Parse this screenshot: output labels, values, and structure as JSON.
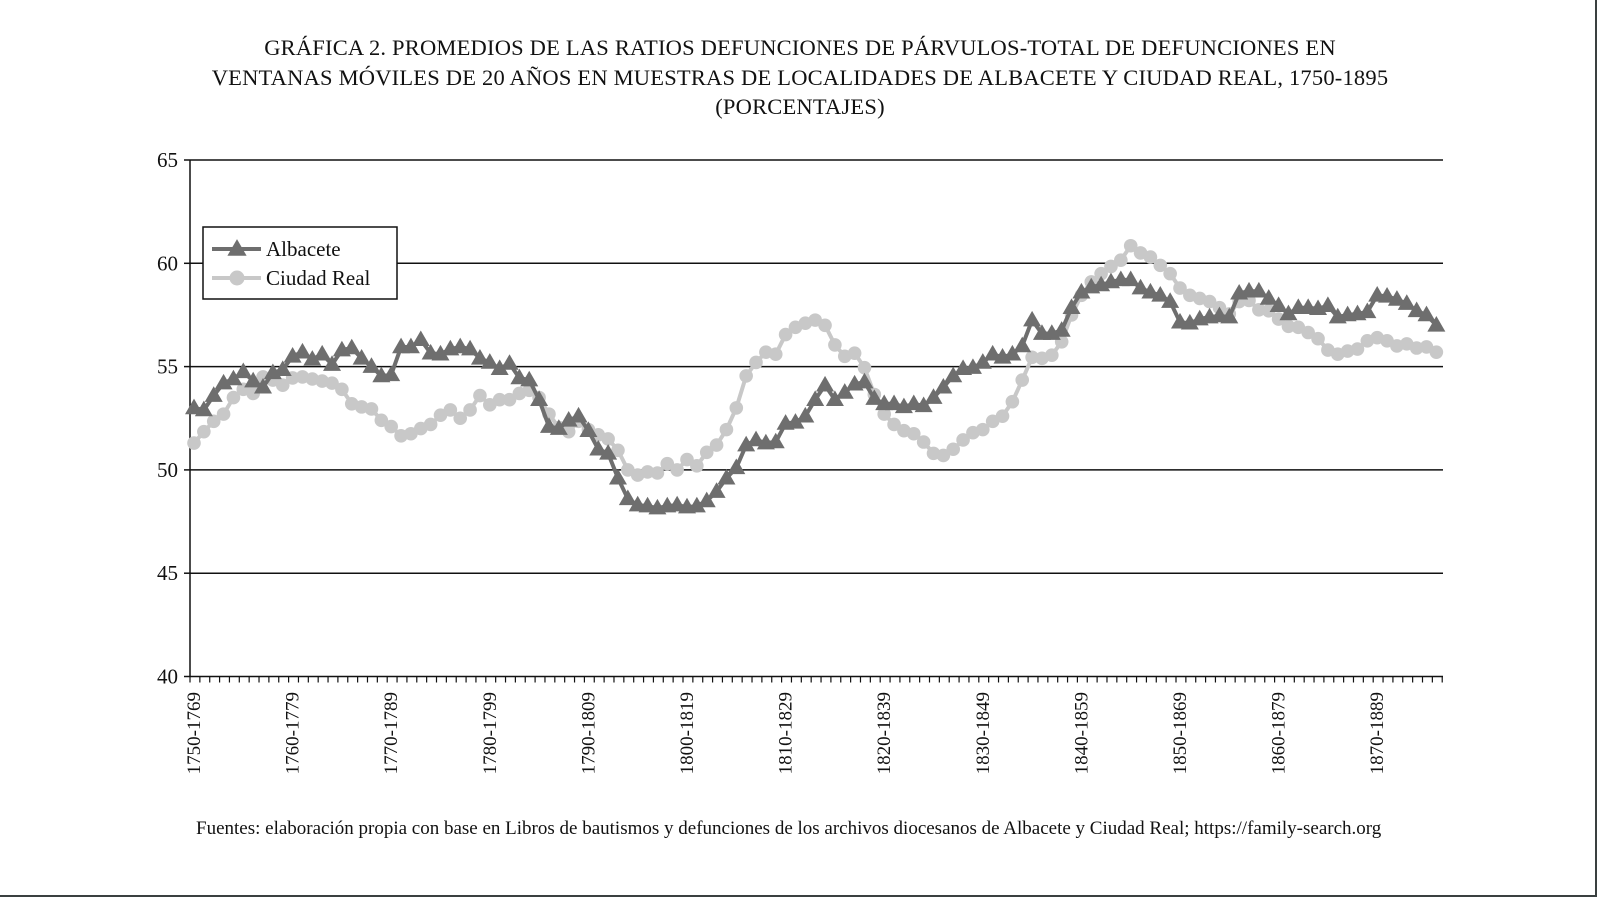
{
  "title": {
    "lines": [
      "GRÁFICA 2. PROMEDIOS DE LAS RATIOS DEFUNCIONES DE PÁRVULOS-TOTAL DE DEFUNCIONES EN",
      "VENTANAS MÓVILES DE 20 AÑOS EN MUESTRAS DE LOCALIDADES DE ALBACETE Y CIUDAD REAL, 1750-1895",
      "(PORCENTAJES)"
    ]
  },
  "footer": "Fuentes: elaboración propia con base en Libros de bautismos y defunciones de los archivos diocesanos de Albacete y Ciudad Real; https://family-search.org",
  "chart_data": {
    "type": "line",
    "ylim": [
      40,
      65
    ],
    "yticks": [
      "40",
      "45",
      "50",
      "55",
      "60",
      "65"
    ],
    "grid": "horizontal",
    "legend_placement": "top-left",
    "x_tick_labels": [
      "1750-1769",
      "1760-1779",
      "1770-1789",
      "1780-1799",
      "1790-1809",
      "1800-1819",
      "1810-1829",
      "1820-1839",
      "1830-1849",
      "1840-1859",
      "1850-1869",
      "1860-1879",
      "1870-1889"
    ],
    "x_tick_label_every": 10,
    "series": [
      {
        "name": "Albacete",
        "color": "#6e6e6e",
        "marker": "triangle",
        "values": [
          53.0,
          52.9,
          53.6,
          54.2,
          54.4,
          54.75,
          54.3,
          54.0,
          54.7,
          54.85,
          55.5,
          55.7,
          55.35,
          55.6,
          55.1,
          55.8,
          55.9,
          55.4,
          55.0,
          54.55,
          54.6,
          55.95,
          55.95,
          56.3,
          55.65,
          55.6,
          55.85,
          55.95,
          55.85,
          55.4,
          55.2,
          54.9,
          55.15,
          54.45,
          54.35,
          53.4,
          52.1,
          52.0,
          52.4,
          52.6,
          51.9,
          51.0,
          50.8,
          49.6,
          48.6,
          48.3,
          48.25,
          48.15,
          48.25,
          48.3,
          48.2,
          48.25,
          48.5,
          48.95,
          49.6,
          50.1,
          51.2,
          51.45,
          51.3,
          51.35,
          52.25,
          52.3,
          52.6,
          53.4,
          54.1,
          53.4,
          53.75,
          54.15,
          54.25,
          53.45,
          53.2,
          53.2,
          53.05,
          53.2,
          53.1,
          53.5,
          54.0,
          54.55,
          54.9,
          54.95,
          55.2,
          55.6,
          55.45,
          55.6,
          56.0,
          57.25,
          56.6,
          56.6,
          56.75,
          57.85,
          58.6,
          58.85,
          58.95,
          59.1,
          59.2,
          59.2,
          58.8,
          58.6,
          58.45,
          58.15,
          57.15,
          57.1,
          57.3,
          57.4,
          57.45,
          57.4,
          58.55,
          58.65,
          58.65,
          58.3,
          57.95,
          57.55,
          57.85,
          57.85,
          57.8,
          57.95,
          57.4,
          57.5,
          57.55,
          57.65,
          58.45,
          58.4,
          58.25,
          58.05,
          57.7,
          57.5,
          57.0
        ]
      },
      {
        "name": "Ciudad Real",
        "color": "#c8c8c8",
        "marker": "circle",
        "values": [
          51.3,
          51.85,
          52.35,
          52.7,
          53.5,
          53.9,
          53.7,
          54.5,
          54.35,
          54.1,
          54.45,
          54.5,
          54.4,
          54.3,
          54.2,
          53.9,
          53.2,
          53.05,
          52.95,
          52.4,
          52.1,
          51.65,
          51.75,
          52.0,
          52.2,
          52.65,
          52.9,
          52.5,
          52.9,
          53.6,
          53.15,
          53.4,
          53.4,
          53.7,
          53.85,
          53.5,
          52.7,
          52.05,
          51.85,
          52.35,
          51.95,
          51.7,
          51.5,
          50.95,
          50.0,
          49.75,
          49.9,
          49.85,
          50.3,
          50.0,
          50.5,
          50.2,
          50.85,
          51.2,
          51.95,
          53.0,
          54.55,
          55.2,
          55.7,
          55.6,
          56.55,
          56.9,
          57.1,
          57.25,
          57.0,
          56.05,
          55.5,
          55.65,
          54.95,
          53.65,
          52.7,
          52.2,
          51.9,
          51.75,
          51.35,
          50.8,
          50.7,
          51.0,
          51.45,
          51.8,
          51.95,
          52.35,
          52.6,
          53.3,
          54.35,
          55.45,
          55.4,
          55.55,
          56.2,
          57.5,
          58.45,
          59.1,
          59.5,
          59.85,
          60.15,
          60.85,
          60.5,
          60.3,
          59.9,
          59.5,
          58.8,
          58.45,
          58.3,
          58.15,
          57.85,
          57.55,
          58.15,
          58.2,
          57.75,
          57.7,
          57.3,
          56.95,
          56.9,
          56.65,
          56.35,
          55.8,
          55.6,
          55.75,
          55.85,
          56.25,
          56.4,
          56.25,
          56.0,
          56.1,
          55.9,
          55.95,
          55.7
        ]
      }
    ]
  }
}
